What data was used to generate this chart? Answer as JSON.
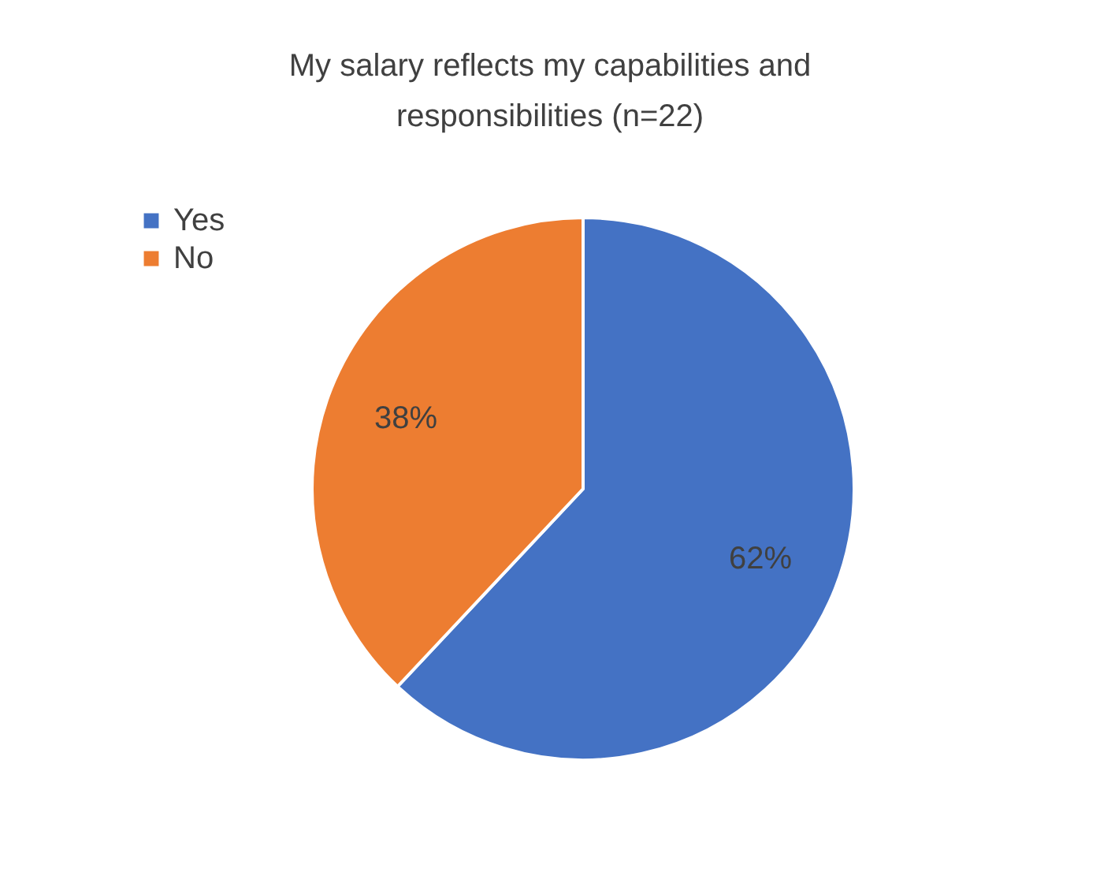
{
  "chart_data": {
    "type": "pie",
    "title": "My salary reflects my capabilities and responsibilities (n=22)",
    "categories": [
      "Yes",
      "No"
    ],
    "values": [
      62,
      38
    ],
    "colors": [
      "#4472c4",
      "#ed7d31"
    ],
    "value_labels": [
      "62%",
      "38%"
    ],
    "legend": "top left"
  }
}
